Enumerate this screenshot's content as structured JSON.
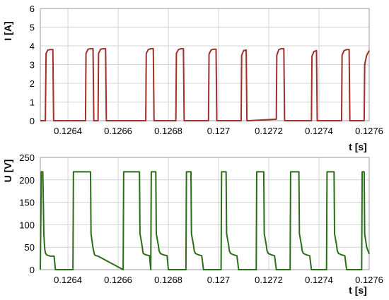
{
  "chart_data": [
    {
      "type": "line",
      "ylabel": "I [A]",
      "xlabel": "t [s]",
      "xlim": [
        0.12629,
        0.1276
      ],
      "ylim": [
        0,
        6
      ],
      "grid": true,
      "x_ticks": [
        0.1264,
        0.1266,
        0.1268,
        0.127,
        0.1272,
        0.1274,
        0.1276
      ],
      "x_tick_labels": [
        "0.1264",
        "0.1266",
        "0.1268",
        "0.127",
        "0.1272",
        "0.1274",
        "0.1276"
      ],
      "y_ticks": [
        0,
        1,
        2,
        3,
        4,
        5,
        6
      ],
      "y_tick_labels": [
        "0",
        "1",
        "2",
        "3",
        "4",
        "5",
        "6"
      ],
      "series": [
        {
          "color": "#a0302a",
          "x": [
            0.12629,
            0.12631,
            0.126313,
            0.12632,
            0.12633,
            0.12634,
            0.126343,
            0.12635,
            0.12647,
            0.126472,
            0.12648,
            0.12649,
            0.1265,
            0.126503,
            0.12651,
            0.12652,
            0.126522,
            0.12653,
            0.12654,
            0.12655,
            0.126553,
            0.12656,
            0.12671,
            0.126712,
            0.12672,
            0.12673,
            0.12674,
            0.126743,
            0.12675,
            0.12683,
            0.126832,
            0.12684,
            0.12685,
            0.12686,
            0.126863,
            0.12687,
            0.12696,
            0.126962,
            0.12697,
            0.12698,
            0.12699,
            0.126993,
            0.127,
            0.12709,
            0.127092,
            0.1271,
            0.12711,
            0.127113,
            0.12712,
            0.12723,
            0.127232,
            0.12724,
            0.12725,
            0.12726,
            0.127263,
            0.12727,
            0.12737,
            0.127372,
            0.12738,
            0.12739,
            0.127393,
            0.1274,
            0.12749,
            0.127492,
            0.1275,
            0.12751,
            0.12752,
            0.127523,
            0.12753,
            0.12758,
            0.127582,
            0.12759,
            0.1276
          ],
          "y": [
            0,
            0,
            3.6,
            3.78,
            3.8,
            3.8,
            0,
            0,
            0,
            3.6,
            3.82,
            3.85,
            3.85,
            0,
            0,
            0,
            3.6,
            3.82,
            3.85,
            3.85,
            0,
            0,
            0,
            3.6,
            3.8,
            3.85,
            3.85,
            0,
            0,
            0,
            3.6,
            3.8,
            3.85,
            3.85,
            0,
            0,
            0,
            3.55,
            3.78,
            3.82,
            3.82,
            0,
            0,
            0,
            3.5,
            3.75,
            3.78,
            0,
            0,
            0.08,
            3.5,
            3.8,
            3.85,
            3.85,
            0,
            0,
            0,
            3.45,
            3.7,
            3.75,
            0,
            0,
            0,
            3.5,
            3.75,
            3.8,
            3.8,
            0,
            0,
            0,
            3.0,
            3.5,
            3.75
          ]
        }
      ]
    },
    {
      "type": "line",
      "ylabel": "U [V]",
      "xlabel": "t [s]",
      "xlim": [
        0.12629,
        0.1276
      ],
      "ylim": [
        0,
        250
      ],
      "grid": true,
      "x_ticks": [
        0.1264,
        0.1266,
        0.1268,
        0.127,
        0.1272,
        0.1274,
        0.1276
      ],
      "x_tick_labels": [
        "0.1264",
        "0.1266",
        "0.1268",
        "0.127",
        "0.1272",
        "0.1274",
        "0.1276"
      ],
      "y_ticks": [
        0,
        50,
        100,
        150,
        200,
        250
      ],
      "y_tick_labels": [
        "0",
        "50",
        "100",
        "150",
        "200",
        "250"
      ],
      "series": [
        {
          "color": "#2a6e1a",
          "x": [
            0.12629,
            0.126294,
            0.1263,
            0.126304,
            0.126306,
            0.126308,
            0.12631,
            0.126315,
            0.12633,
            0.126345,
            0.12635,
            0.12642,
            0.126422,
            0.12649,
            0.126492,
            0.1265,
            0.126505,
            0.126508,
            0.12652,
            0.12662,
            0.126622,
            0.126685,
            0.126687,
            0.126695,
            0.126698,
            0.1267,
            0.12671,
            0.126725,
            0.12673,
            0.12673,
            0.126732,
            0.12675,
            0.126752,
            0.12676,
            0.126763,
            0.126768,
            0.12678,
            0.126795,
            0.1268,
            0.12687,
            0.126872,
            0.12689,
            0.126892,
            0.1269,
            0.126903,
            0.126908,
            0.12692,
            0.126933,
            0.12694,
            0.12701,
            0.127012,
            0.12703,
            0.127032,
            0.12704,
            0.127043,
            0.127048,
            0.12706,
            0.127073,
            0.12708,
            0.12715,
            0.127152,
            0.12718,
            0.127182,
            0.12719,
            0.127193,
            0.127198,
            0.12721,
            0.127223,
            0.12723,
            0.127285,
            0.127287,
            0.12732,
            0.127322,
            0.12733,
            0.127333,
            0.127338,
            0.12735,
            0.127363,
            0.12737,
            0.12743,
            0.127432,
            0.12746,
            0.127462,
            0.12747,
            0.127473,
            0.127478,
            0.12749,
            0.127503,
            0.12751,
            0.12757,
            0.127572,
            0.12758,
            0.127582,
            0.12759,
            0.1276
          ],
          "y": [
            0,
            218,
            218,
            80,
            60,
            45,
            38,
            33,
            30,
            30,
            0,
            0,
            218,
            218,
            80,
            48,
            35,
            32,
            30,
            0,
            218,
            218,
            80,
            55,
            42,
            36,
            33,
            31,
            0,
            0,
            218,
            218,
            80,
            55,
            42,
            36,
            33,
            31,
            0,
            0,
            218,
            218,
            80,
            55,
            42,
            36,
            33,
            31,
            0,
            0,
            218,
            218,
            80,
            55,
            42,
            36,
            33,
            31,
            0,
            0,
            218,
            218,
            80,
            55,
            42,
            36,
            33,
            31,
            0,
            0,
            218,
            218,
            80,
            55,
            42,
            36,
            33,
            31,
            0,
            0,
            218,
            218,
            80,
            55,
            42,
            36,
            33,
            31,
            0,
            0,
            218,
            218,
            80,
            50,
            35
          ]
        }
      ]
    }
  ]
}
